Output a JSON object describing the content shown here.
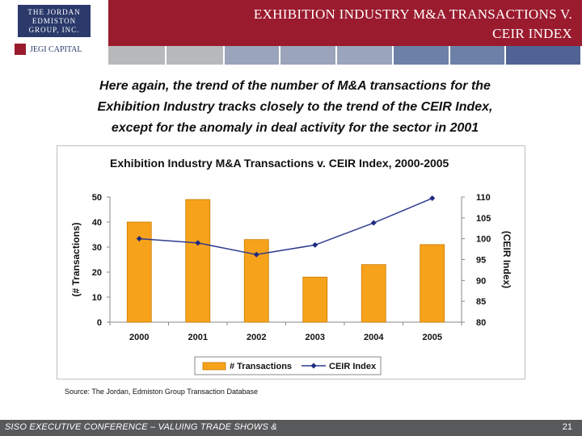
{
  "header": {
    "logo_lines": [
      "THE JORDAN",
      "EDMISTON",
      "GROUP, INC."
    ],
    "logo_secondary": "JEGI CAPITAL",
    "title_line1": "EXHIBITION INDUSTRY M&A TRANSACTIONS V.",
    "title_line2": "CEIR INDEX",
    "band_colors": [
      "#b8b9bb",
      "#b8b9bb",
      "#9aa4bb",
      "#9aa4bb",
      "#9aa4bb",
      "#6d80a8",
      "#6d80a8",
      "#4f6494"
    ]
  },
  "lead": {
    "line1": "Here again, the trend of the number of M&A transactions for the",
    "line2": "Exhibition Industry tracks closely to the trend of the CEIR Index,",
    "line3": "except for the anomaly in deal activity for the sector in 2001"
  },
  "chart_data": {
    "type": "bar",
    "title": "Exhibition Industry M&A Transactions v. CEIR Index, 2000-2005",
    "categories": [
      "2000",
      "2001",
      "2002",
      "2003",
      "2004",
      "2005"
    ],
    "series": [
      {
        "name": "# Transactions",
        "type": "bar",
        "axis": "left",
        "color": "#f7a21b",
        "values": [
          40,
          49,
          33,
          18,
          23,
          31
        ]
      },
      {
        "name": "CEIR Index",
        "type": "line",
        "axis": "right",
        "color": "#2e3c8f",
        "values": [
          100,
          99,
          96.2,
          98.5,
          103.8,
          109.7
        ]
      }
    ],
    "ylabel": "(# Transactions)",
    "y2label": "(CEIR Index)",
    "ylim": [
      0,
      50
    ],
    "y2lim": [
      80,
      110
    ],
    "yticks": [
      "0",
      "10",
      "20",
      "30",
      "40",
      "50"
    ],
    "y2ticks": [
      "80",
      "85",
      "90",
      "95",
      "100",
      "105",
      "110"
    ],
    "grid": false,
    "legend": "bottom"
  },
  "source": "Source: The Jordan, Edmiston Group Transaction Database",
  "footer": {
    "text": "SISO EXECUTIVE CONFERENCE – VALUING TRADE SHOWS &",
    "page": "21"
  }
}
